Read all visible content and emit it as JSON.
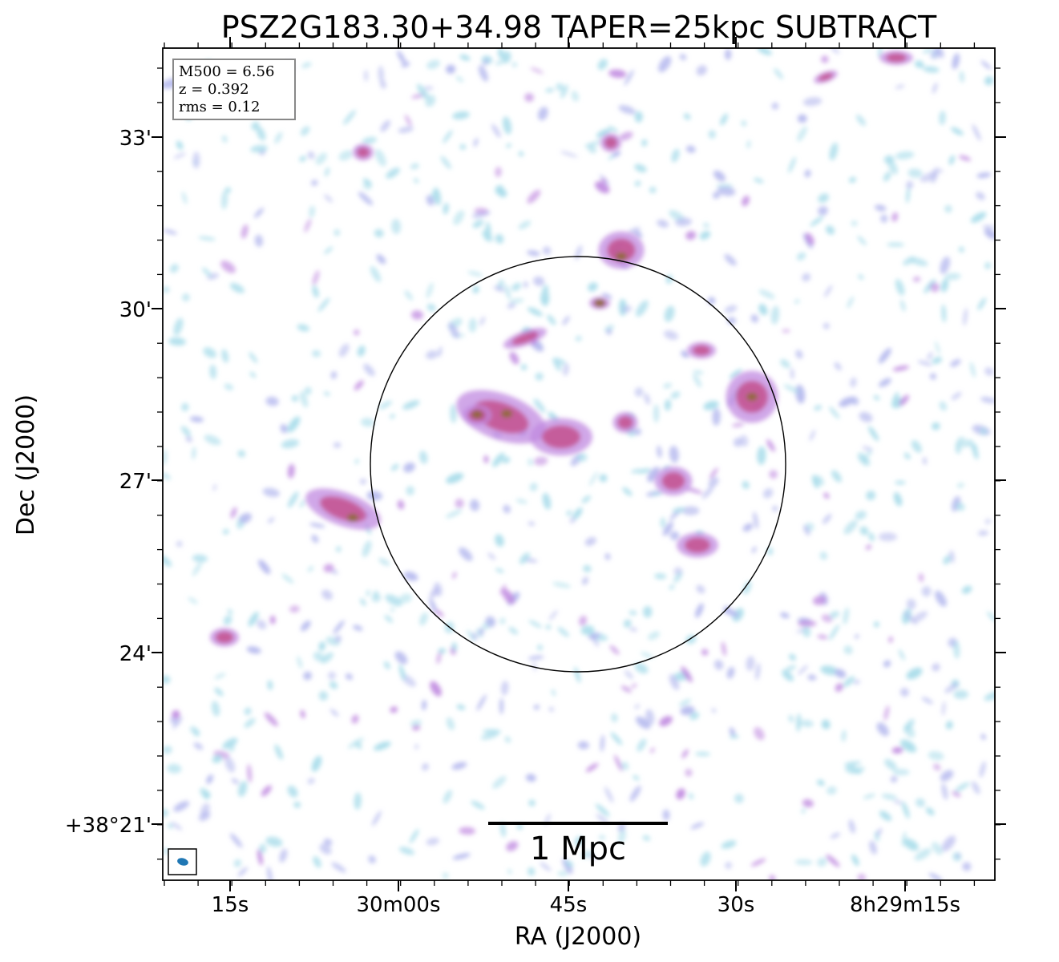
{
  "figure": {
    "title": "PSZ2G183.30+34.98 TAPER=25kpc SUBTRACT",
    "xlabel": "RA (J2000)",
    "ylabel": "Dec (J2000)",
    "x_ticks": [
      "15s",
      "30m00s",
      "45s",
      "30s",
      "8h29m15s"
    ],
    "y_ticks": [
      "33'",
      "30'",
      "27'",
      "24'",
      "+38°21'"
    ],
    "info": {
      "mass": "M500 = 6.56",
      "redshift": "z = 0.392",
      "rms": "rms = 0.12"
    },
    "scalebar_label": "1 Mpc",
    "colors": {
      "faint": "#a8dcea",
      "low": "#b4b8ee",
      "mid": "#c08ae0",
      "high": "#c0407a",
      "peak": "#8a6a2a",
      "beam": "#1f77b4"
    }
  }
}
